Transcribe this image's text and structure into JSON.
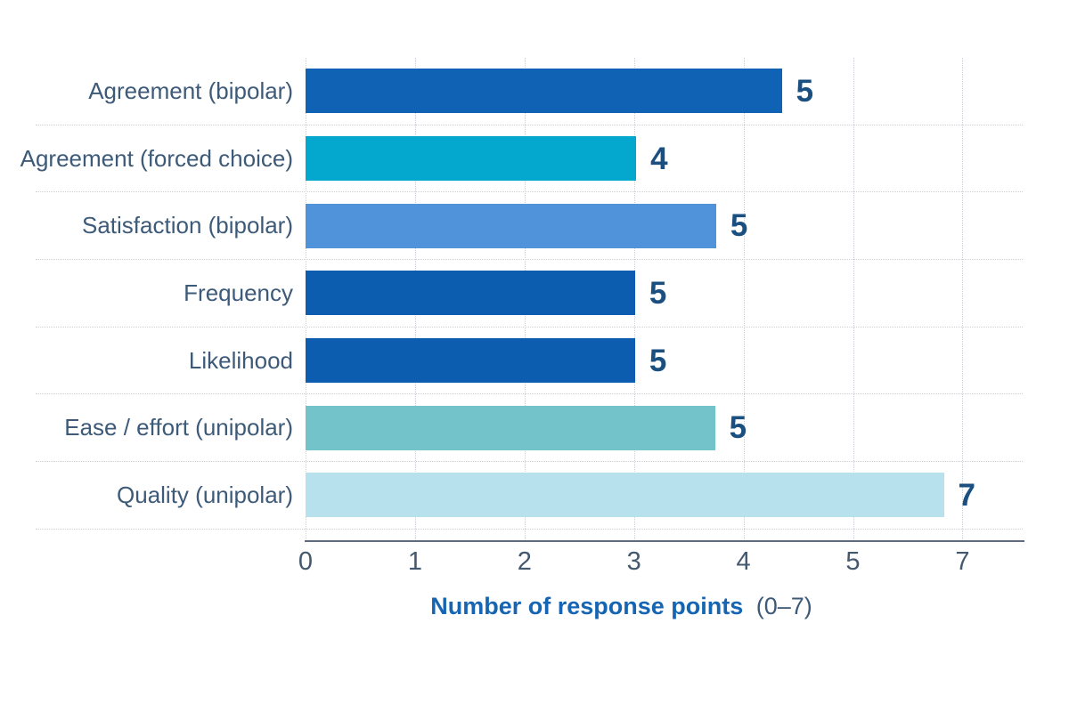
{
  "chart_data": {
    "type": "bar",
    "orientation": "horizontal",
    "title": "",
    "categories": [
      "Agreement (bipolar)",
      "Agreement (forced choice)",
      "Satisfaction (bipolar)",
      "Frequency",
      "Likelihood",
      "Ease / effort (unipolar)",
      "Quality (unipolar)"
    ],
    "values": [
      "5",
      "4",
      "5",
      "5",
      "5",
      "5",
      "7"
    ],
    "bar_visual_lengths_units": [
      4.35,
      3.02,
      3.75,
      3.01,
      3.01,
      3.74,
      5.83
    ],
    "axis_max_units": 6.55,
    "tick_labels": [
      "0",
      "1",
      "2",
      "3",
      "4",
      "5",
      "7"
    ],
    "tick_positions_units": [
      0,
      1,
      2,
      3,
      4,
      5,
      6
    ],
    "xlabel_main": "Number of response points",
    "xlabel_range": "(0–7)",
    "xlim": [
      0,
      6.55
    ],
    "grid": true,
    "legend": false,
    "bar_colors": [
      "#0f62b4",
      "#04a7cd",
      "#5093da",
      "#0c5cb0",
      "#0c5cb0",
      "#73c4ca",
      "#b7e1ed"
    ],
    "value_label_color": "#1a4f80",
    "category_label_color": "#3d5a78",
    "tick_label_color": "#44586e",
    "xlabel_color": "#1565b3",
    "axis_line_color": "#5c6b7f",
    "gridline_color": "#c9d0da",
    "background_color": "#ffffff"
  }
}
